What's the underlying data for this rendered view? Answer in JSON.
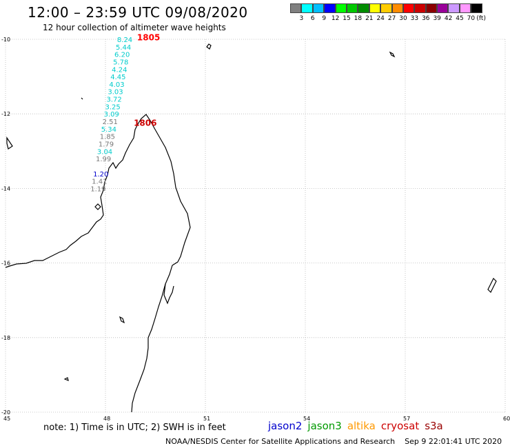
{
  "header": {
    "title": "12:00 – 23:59 UTC 09/08/2020",
    "subtitle": "12 hour collection of altimeter wave heights"
  },
  "legend": {
    "colors": [
      "#808080",
      "#00ffff",
      "#00bfff",
      "#0000ff",
      "#00ff00",
      "#00c800",
      "#008c00",
      "#ffff00",
      "#ffcc00",
      "#ff8c00",
      "#ff0000",
      "#cc0000",
      "#8b0000",
      "#990099",
      "#cc99ff",
      "#ff99ff",
      "#000000"
    ],
    "labels": [
      "3",
      "6",
      "9",
      "12",
      "15",
      "18",
      "21",
      "24",
      "27",
      "30",
      "33",
      "36",
      "39",
      "42",
      "45",
      "70"
    ],
    "unit": "(ft)"
  },
  "map": {
    "lat_labels": [
      "-10",
      "-12",
      "-14",
      "-16",
      "-18",
      "-20"
    ],
    "lon_labels": [
      "45",
      "48",
      "51",
      "54",
      "57",
      "60"
    ],
    "lat_values": [
      -10,
      -12,
      -14,
      -16,
      -18,
      -20
    ],
    "lon_values": [
      45,
      48,
      51,
      54,
      57,
      60
    ],
    "time_labels": [
      {
        "text": "1805",
        "lon": 48.95,
        "lat": -9.95,
        "color": "#ff0000"
      },
      {
        "text": "1806",
        "lon": 48.85,
        "lat": -12.25,
        "color": "#cc0000"
      }
    ],
    "tracks": [
      {
        "lon": 48.35,
        "values": [
          {
            "v": "8.24",
            "c": "#00cccc"
          },
          {
            "v": "5.44",
            "c": "#00cccc"
          },
          {
            "v": "6.20",
            "c": "#00cccc"
          },
          {
            "v": "5.78",
            "c": "#00cccc"
          },
          {
            "v": "4.24",
            "c": "#00cccc"
          },
          {
            "v": "4.45",
            "c": "#00cccc"
          },
          {
            "v": "4.03",
            "c": "#00cccc"
          },
          {
            "v": "3.03",
            "c": "#00cccc"
          },
          {
            "v": "3.72",
            "c": "#00cccc"
          },
          {
            "v": "3.25",
            "c": "#00cccc"
          },
          {
            "v": "3.09",
            "c": "#00cccc"
          },
          {
            "v": "2.51",
            "c": "#777777"
          },
          {
            "v": "5.34",
            "c": "#00cccc"
          },
          {
            "v": "1.85",
            "c": "#777777"
          },
          {
            "v": "1.79",
            "c": "#777777"
          },
          {
            "v": "3.04",
            "c": "#00cccc"
          },
          {
            "v": "1.99",
            "c": "#777777"
          },
          {
            "v": "",
            "c": "#777777"
          },
          {
            "v": "1.20",
            "c": "#0000cc"
          },
          {
            "v": "1.41",
            "c": "#777777"
          },
          {
            "v": "1.19",
            "c": "#777777"
          }
        ]
      }
    ]
  },
  "note": "note: 1) Time is in UTC; 2) SWH is in feet",
  "satellites": [
    {
      "name": "jason2",
      "color": "#0000cc"
    },
    {
      "name": "jason3",
      "color": "#009900"
    },
    {
      "name": "altika",
      "color": "#ff9900"
    },
    {
      "name": "cryosat",
      "color": "#cc0000"
    },
    {
      "name": "s3a",
      "color": "#990000"
    }
  ],
  "credit": "NOAA/NESDIS Center for Satellite Applications and Research",
  "timestamp": "Sep  9 22:01:41 UTC 2020"
}
